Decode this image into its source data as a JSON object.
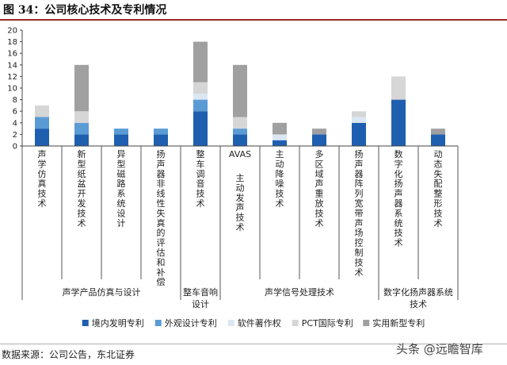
{
  "header": {
    "title": "图 34：公司核心技术及专利情况"
  },
  "footer": {
    "source": "数据来源：公司公告，东北证券",
    "watermark": "头条 @远瞻智库"
  },
  "chart_data": {
    "type": "bar",
    "stacked": true,
    "ylim": [
      0,
      20
    ],
    "yticks": [
      0,
      2,
      4,
      6,
      8,
      10,
      12,
      14,
      16,
      18,
      20
    ],
    "categories": [
      "声学仿真技术",
      "新型纸盆开发技术",
      "异型磁路系统设计",
      "扬声器非线性失真的评估和补偿",
      "整车调音技术",
      "AVAS 主动发声技术",
      "主动降噪技术",
      "多区域声重放技术",
      "扬声器阵列宽带声场控制技术",
      "数字化扬声器系统技术",
      "动态失配整形技术"
    ],
    "groups": [
      {
        "label": "声学产品仿真与设计",
        "span": [
          0,
          3
        ]
      },
      {
        "label": "整车音响设计",
        "span": [
          4,
          4
        ]
      },
      {
        "label": "声学信号处理技术",
        "span": [
          5,
          8
        ]
      },
      {
        "label": "数字化扬声器系统技术",
        "span": [
          9,
          10
        ]
      }
    ],
    "series": [
      {
        "name": "境内发明专利",
        "color": "#1f5fb0",
        "values": [
          3,
          2,
          2,
          2,
          6,
          2,
          1,
          2,
          4,
          8,
          2
        ]
      },
      {
        "name": "外观设计专利",
        "color": "#5b9bd5",
        "values": [
          2,
          2,
          1,
          1,
          2,
          1,
          0,
          0,
          0,
          0,
          0
        ]
      },
      {
        "name": "软件著作权",
        "color": "#dbe7f3",
        "values": [
          0,
          0,
          0,
          0,
          1,
          0,
          1,
          0,
          1,
          0,
          0
        ]
      },
      {
        "name": "PCT国际专利",
        "color": "#d6d6d6",
        "values": [
          2,
          2,
          0,
          0,
          2,
          2,
          0,
          0,
          1,
          4,
          0
        ]
      },
      {
        "name": "实用新型专利",
        "color": "#a0a0a0",
        "values": [
          0,
          8,
          0,
          0,
          7,
          9,
          2,
          1,
          0,
          0,
          1
        ]
      }
    ],
    "legend_position": "bottom"
  }
}
